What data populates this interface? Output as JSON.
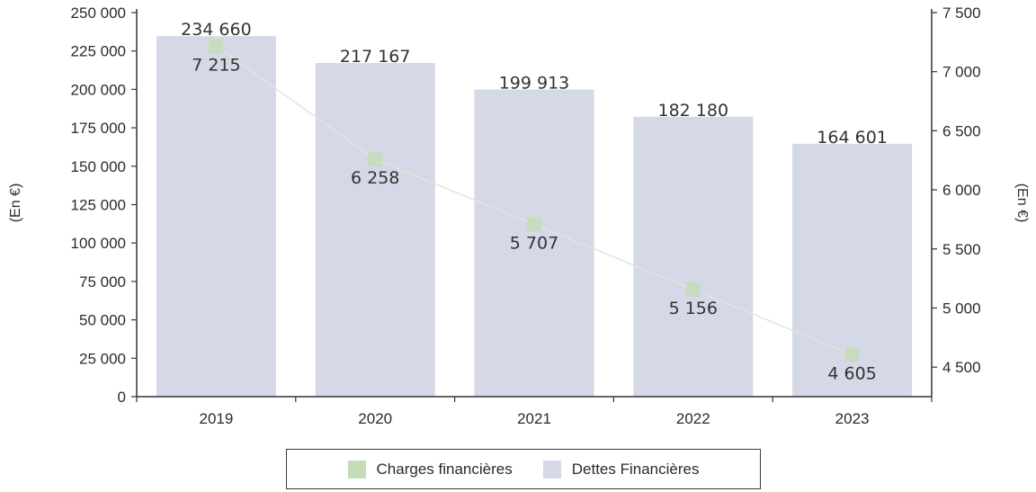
{
  "chart_data": {
    "type": "bar",
    "categories": [
      "2019",
      "2020",
      "2021",
      "2022",
      "2023"
    ],
    "series": [
      {
        "name": "Dettes Financières",
        "type": "bar",
        "axis": "left",
        "values": [
          234660,
          217167,
          199913,
          182180,
          164601
        ],
        "labels": [
          "234 660",
          "217 167",
          "199 913",
          "182 180",
          "164 601"
        ],
        "color": "#d5d8e6"
      },
      {
        "name": "Charges financières",
        "type": "line",
        "axis": "right",
        "values": [
          7215,
          6258,
          5707,
          5156,
          4605
        ],
        "labels": [
          "7 215",
          "6 258",
          "5 707",
          "5 156",
          "4 605"
        ],
        "color": "#c6dcb6"
      }
    ],
    "ylabel": "(En €)",
    "y2label": "(En €)",
    "ylim": [
      0,
      250000
    ],
    "y2lim": [
      4250,
      7500
    ],
    "yticks": [
      "0",
      "25 000",
      "50 000",
      "75 000",
      "100 000",
      "125 000",
      "150 000",
      "175 000",
      "200 000",
      "225 000",
      "250 000"
    ],
    "y2ticks": [
      "4 500",
      "5 000",
      "5 500",
      "6 000",
      "6 500",
      "7 000",
      "7 500"
    ],
    "grid": false,
    "legend_position": "bottom"
  }
}
